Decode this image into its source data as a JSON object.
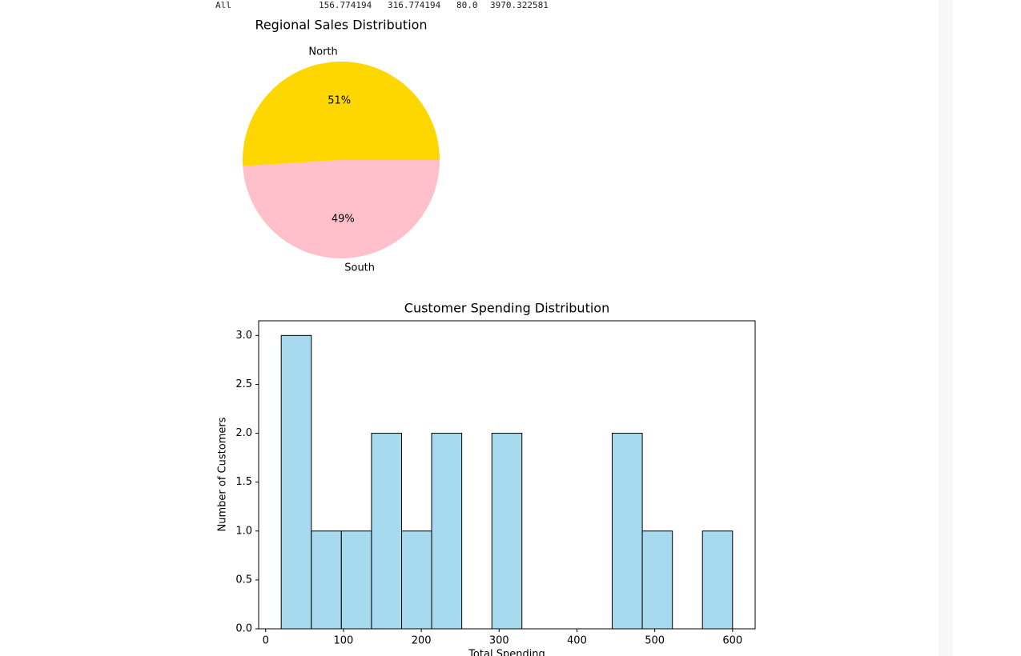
{
  "output_row": [
    "All",
    "156.774194",
    "316.774194",
    "80.0",
    "3970.322581"
  ],
  "chart_data": [
    {
      "type": "pie",
      "title": "Regional Sales Distribution",
      "categories": [
        "North",
        "South"
      ],
      "values": [
        51,
        49
      ],
      "value_labels": [
        "51%",
        "49%"
      ],
      "colors": [
        "gold",
        "pink"
      ]
    },
    {
      "type": "histogram",
      "title": "Customer Spending Distribution",
      "x_label": "Total Spending",
      "y_label": "Number of Customers",
      "bins": [
        20,
        58.7,
        97.3,
        136,
        174.7,
        213.3,
        252,
        290.7,
        329.3,
        368,
        406.7,
        445.3,
        484,
        522.7,
        561.3,
        600
      ],
      "values": [
        3,
        1,
        1,
        2,
        1,
        2,
        0,
        2,
        0,
        0,
        0,
        2,
        1,
        0,
        1
      ],
      "color": "#a8daef",
      "edgecolor": "#000000",
      "xlim": [
        -9,
        629
      ],
      "xticks": [
        0,
        100,
        200,
        300,
        400,
        500,
        600
      ],
      "ylim": [
        0,
        3.15
      ],
      "yticks": [
        {
          "value": 0,
          "label": "0.0"
        },
        {
          "value": 0.5,
          "label": "0.5"
        },
        {
          "value": 1,
          "label": "1.0"
        },
        {
          "value": 1.5,
          "label": "1.5"
        },
        {
          "value": 2,
          "label": "2.0"
        },
        {
          "value": 2.5,
          "label": "2.5"
        },
        {
          "value": 3,
          "label": "3.0"
        }
      ]
    }
  ]
}
